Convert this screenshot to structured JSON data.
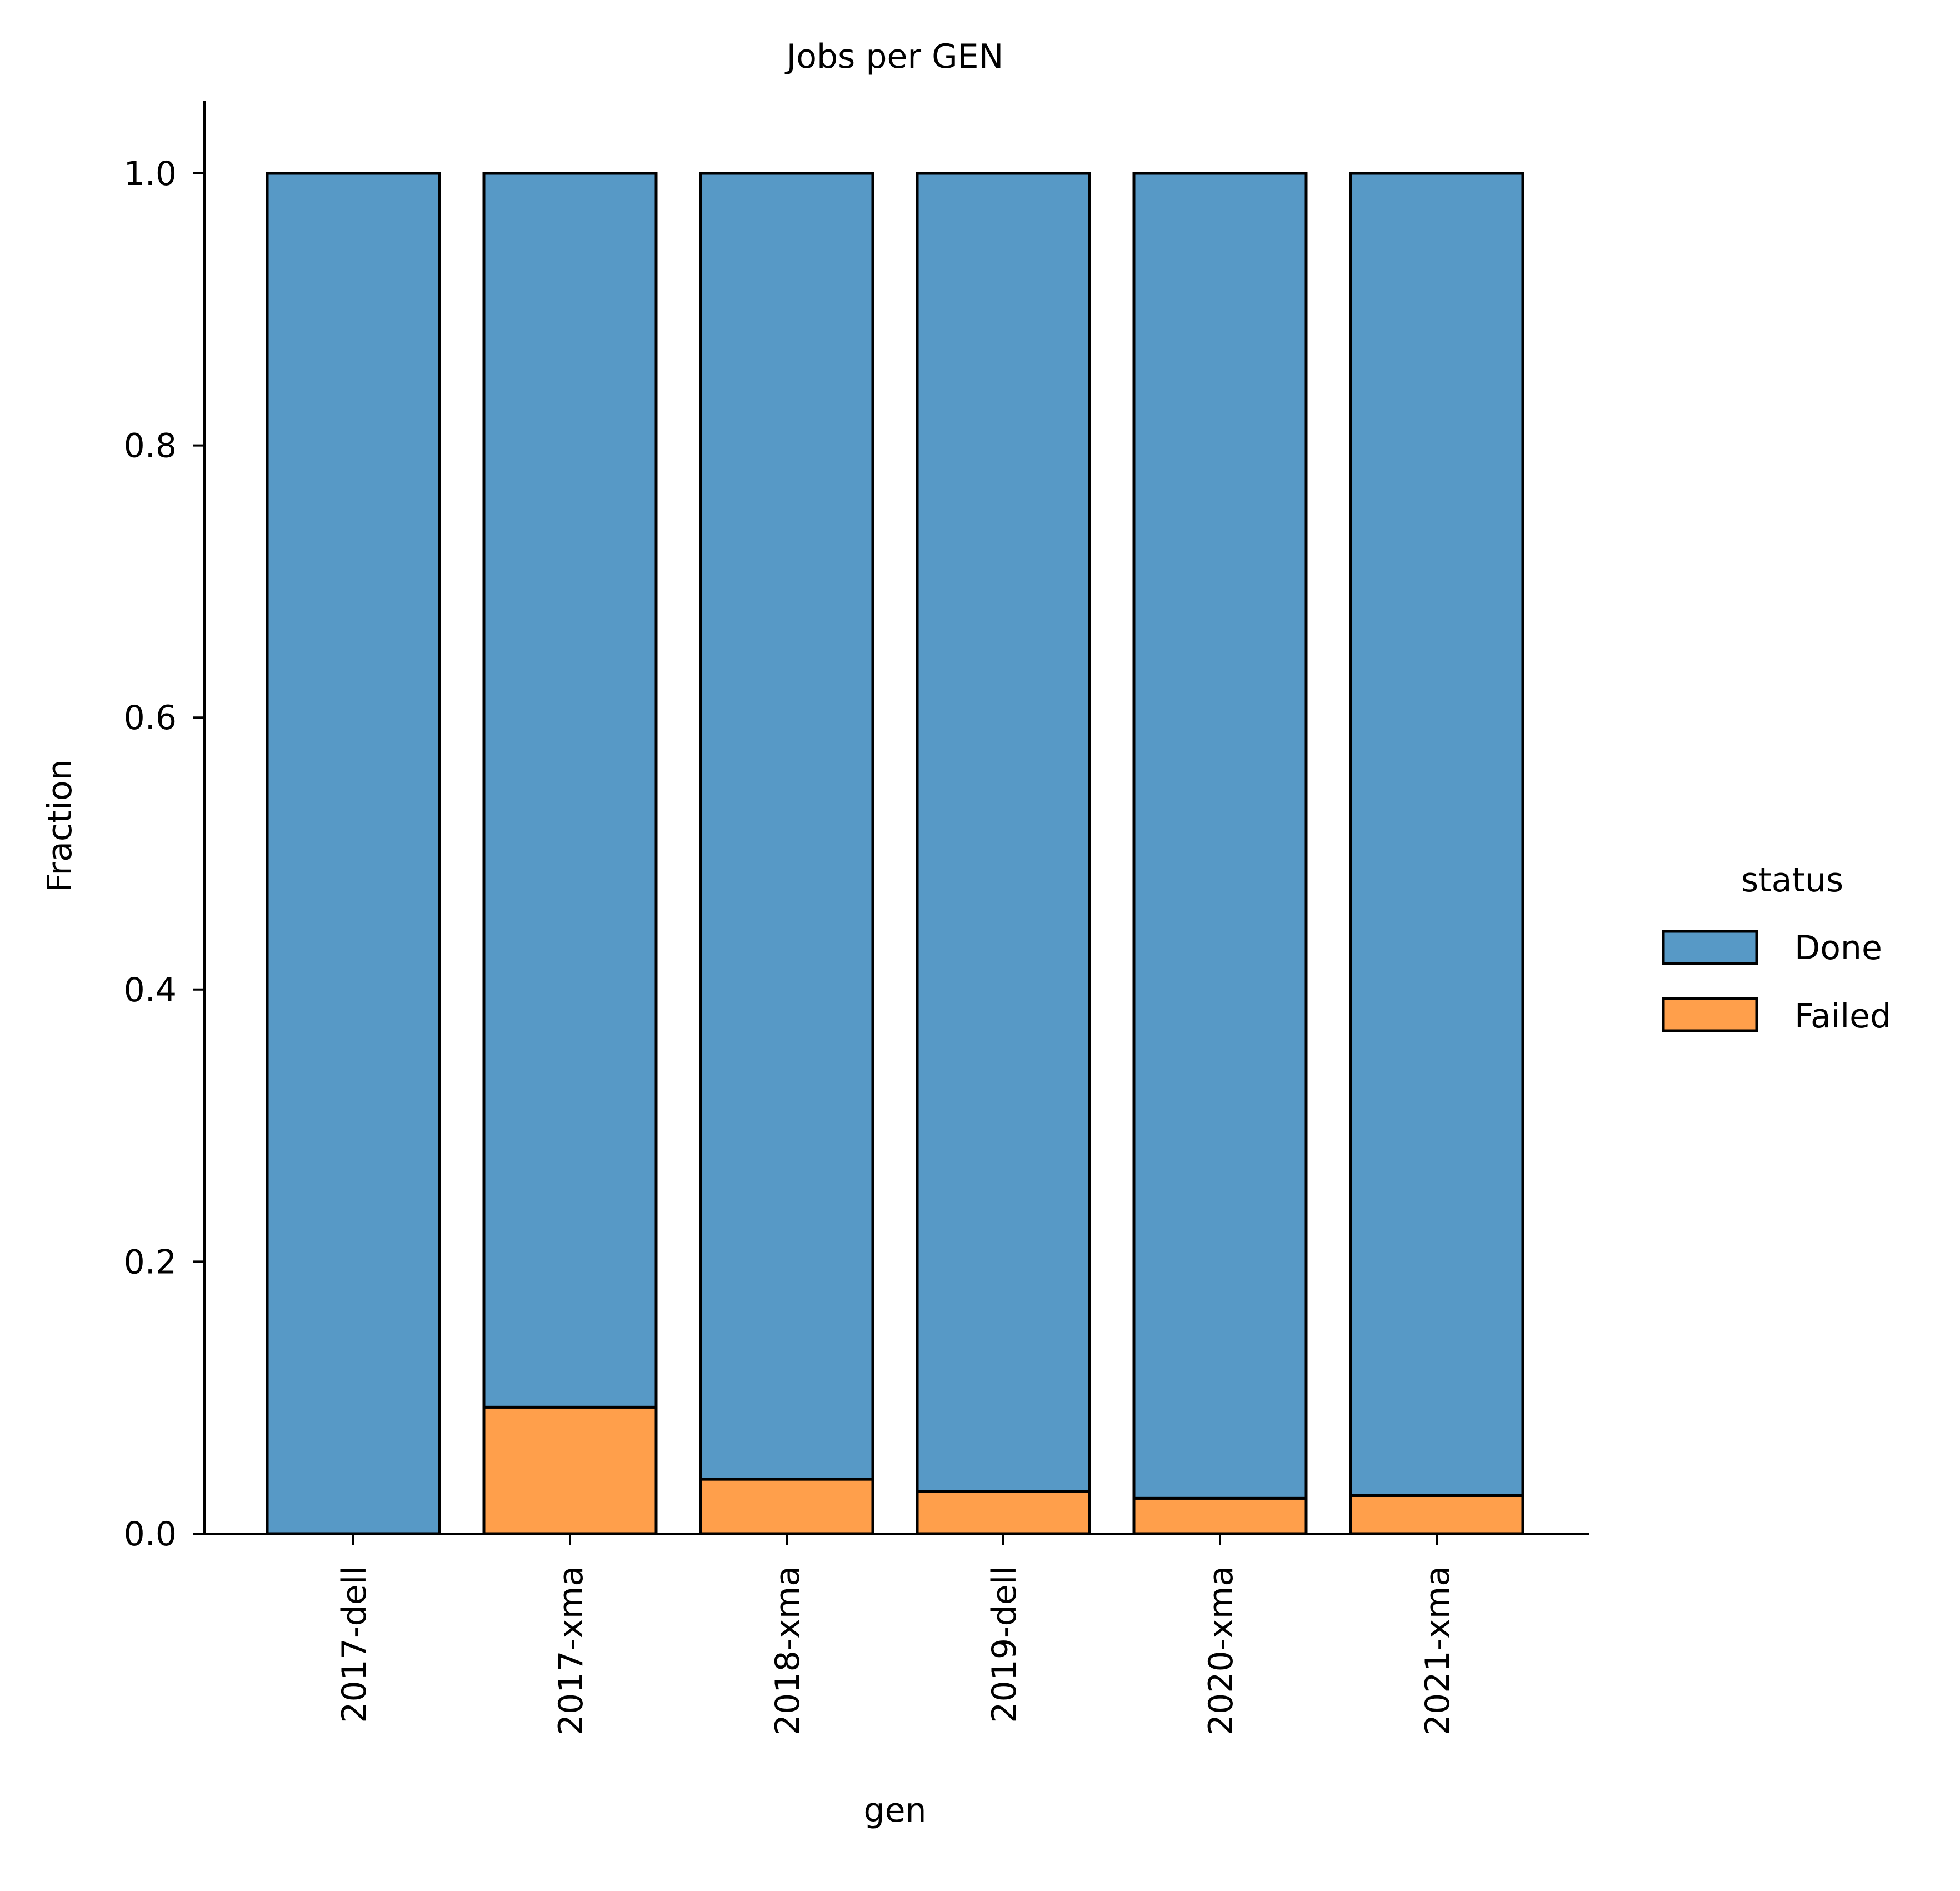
{
  "chart_data": {
    "type": "bar",
    "stacked": true,
    "title": "Jobs per GEN",
    "xlabel": "gen",
    "ylabel": "Fraction",
    "categories": [
      "2017-dell",
      "2017-xma",
      "2018-xma",
      "2019-dell",
      "2020-xma",
      "2021-xma"
    ],
    "series": [
      {
        "name": "Failed",
        "color": "#ff9f4b",
        "values": [
          0.0,
          0.093,
          0.04,
          0.031,
          0.026,
          0.028
        ]
      },
      {
        "name": "Done",
        "color": "#5799c6",
        "values": [
          1.0,
          0.907,
          0.96,
          0.969,
          0.974,
          0.972
        ]
      }
    ],
    "ylim": [
      0,
      1.05
    ],
    "yticks": [
      "0.0",
      "0.2",
      "0.4",
      "0.6",
      "0.8",
      "1.0"
    ],
    "grid": false,
    "legend": {
      "title": "status",
      "placement": "right",
      "entries": [
        "Done",
        "Failed"
      ]
    }
  }
}
